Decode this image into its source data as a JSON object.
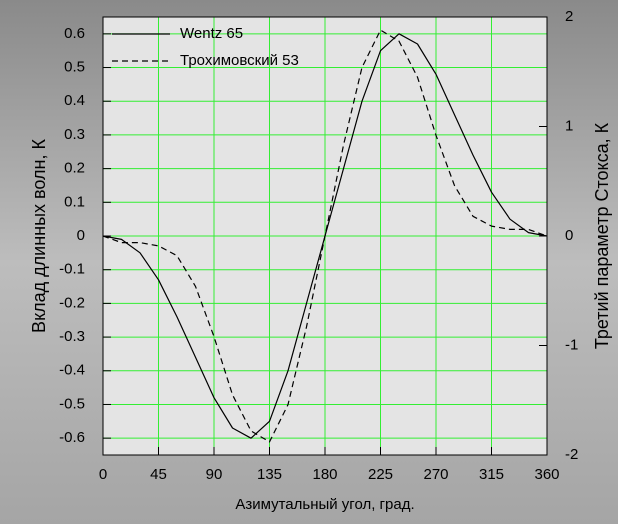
{
  "chart_data": {
    "type": "line",
    "xlabel": "Азимутальный угол, град.",
    "ylabel": "Вклад длинных волн, К",
    "y2label": "Третий параметр Стокса, К",
    "x": [
      0,
      15,
      30,
      45,
      60,
      75,
      90,
      105,
      120,
      135,
      150,
      165,
      180,
      195,
      210,
      225,
      240,
      255,
      270,
      285,
      300,
      315,
      330,
      345,
      360
    ],
    "series": [
      {
        "name": "Wentz 65",
        "color": "#000000",
        "dash": "solid",
        "values": [
          0,
          -0.01,
          -0.05,
          -0.13,
          -0.24,
          -0.36,
          -0.48,
          -0.57,
          -0.6,
          -0.55,
          -0.4,
          -0.2,
          0,
          0.2,
          0.4,
          0.55,
          0.6,
          0.57,
          0.48,
          0.36,
          0.24,
          0.13,
          0.05,
          0.01,
          0
        ]
      },
      {
        "name": "Трохимовский 53",
        "color": "#000000",
        "dash": "dashed",
        "axis": "y2",
        "values": [
          0,
          -0.06,
          -0.06,
          -0.09,
          -0.18,
          -0.46,
          -0.92,
          -1.45,
          -1.78,
          -1.88,
          -1.54,
          -0.83,
          0,
          0.83,
          1.54,
          1.88,
          1.78,
          1.45,
          0.92,
          0.46,
          0.18,
          0.09,
          0.06,
          0.06,
          0
        ]
      }
    ],
    "xlim": [
      0,
      360
    ],
    "xticks": [
      0,
      45,
      90,
      135,
      180,
      225,
      270,
      315,
      360
    ],
    "ylim": [
      -0.65,
      0.65
    ],
    "yticks": [
      -0.6,
      -0.5,
      -0.4,
      -0.3,
      -0.2,
      -0.1,
      0,
      0.1,
      0.2,
      0.3,
      0.4,
      0.5,
      0.6
    ],
    "y2lim": [
      -2,
      2
    ],
    "y2ticks": [
      -2,
      -1,
      0,
      1,
      2
    ],
    "grid": true,
    "grid_color": "#33ee33",
    "legend": "upper left"
  }
}
